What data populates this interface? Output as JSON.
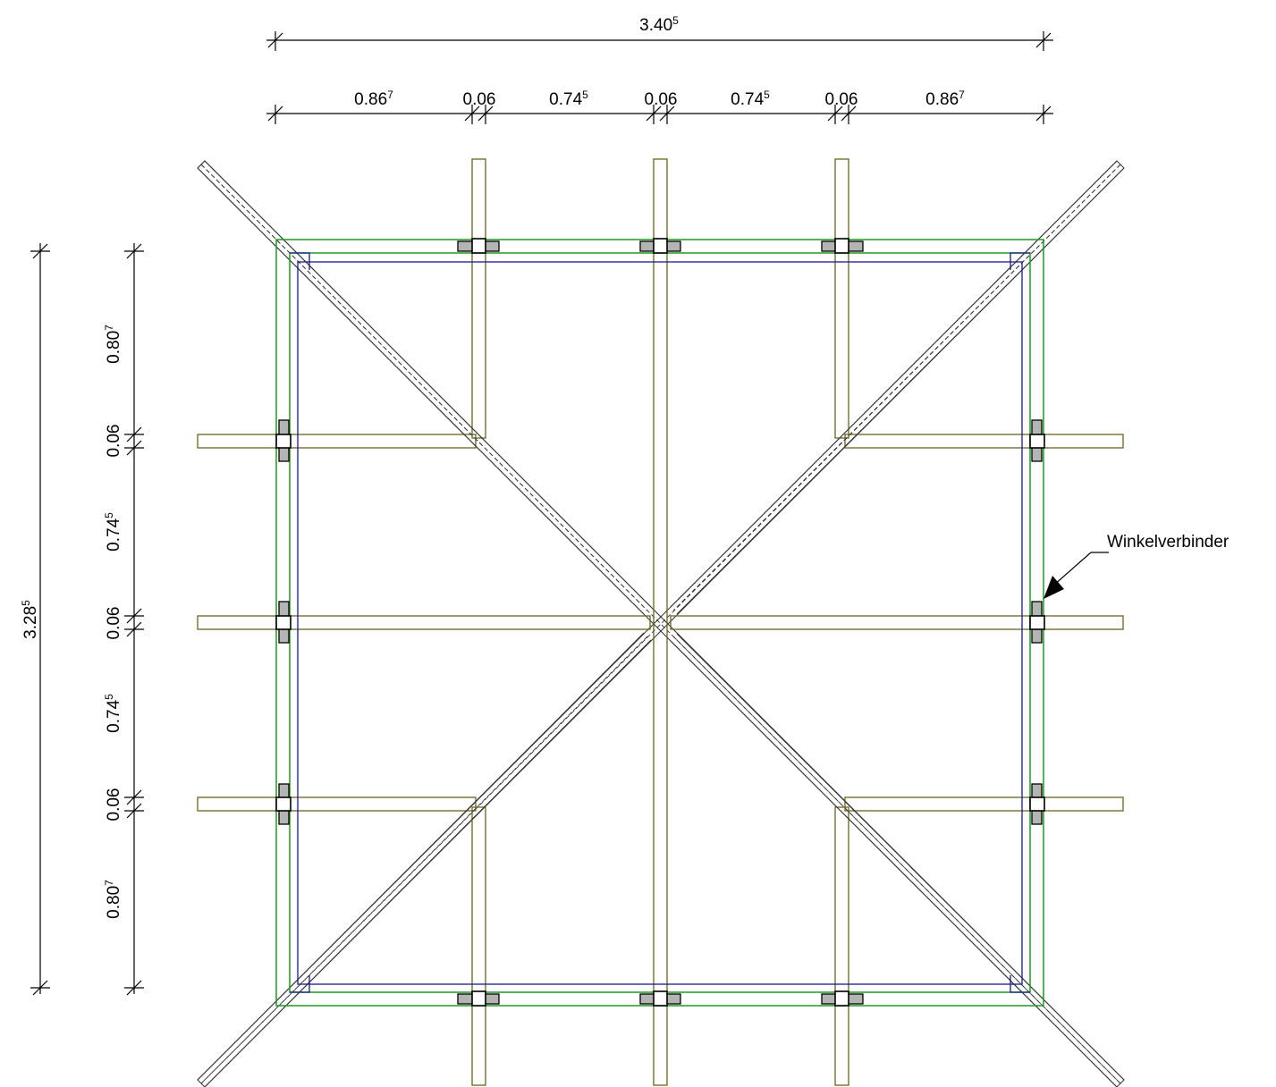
{
  "dimensions": {
    "top_total": {
      "main": "3.40",
      "sup": "5"
    },
    "top_segments": [
      {
        "main": "0.86",
        "sup": "7"
      },
      {
        "main": "0.06",
        "sup": ""
      },
      {
        "main": "0.74",
        "sup": "5"
      },
      {
        "main": "0.06",
        "sup": ""
      },
      {
        "main": "0.74",
        "sup": "5"
      },
      {
        "main": "0.06",
        "sup": ""
      },
      {
        "main": "0.86",
        "sup": "7"
      }
    ],
    "left_total": {
      "main": "3.28",
      "sup": "5"
    },
    "left_segments": [
      {
        "main": "0.80",
        "sup": "7"
      },
      {
        "main": "0.06",
        "sup": ""
      },
      {
        "main": "0.74",
        "sup": "5"
      },
      {
        "main": "0.06",
        "sup": ""
      },
      {
        "main": "0.74",
        "sup": "5"
      },
      {
        "main": "0.06",
        "sup": ""
      },
      {
        "main": "0.80",
        "sup": "7"
      }
    ]
  },
  "callout": {
    "label": "Winkelverbinder"
  },
  "colors": {
    "rafter": "#6b6420",
    "frame_outer": "#1e9a1e",
    "frame_inner": "#1a1a8c",
    "connector_fill": "#b4b4b4"
  }
}
